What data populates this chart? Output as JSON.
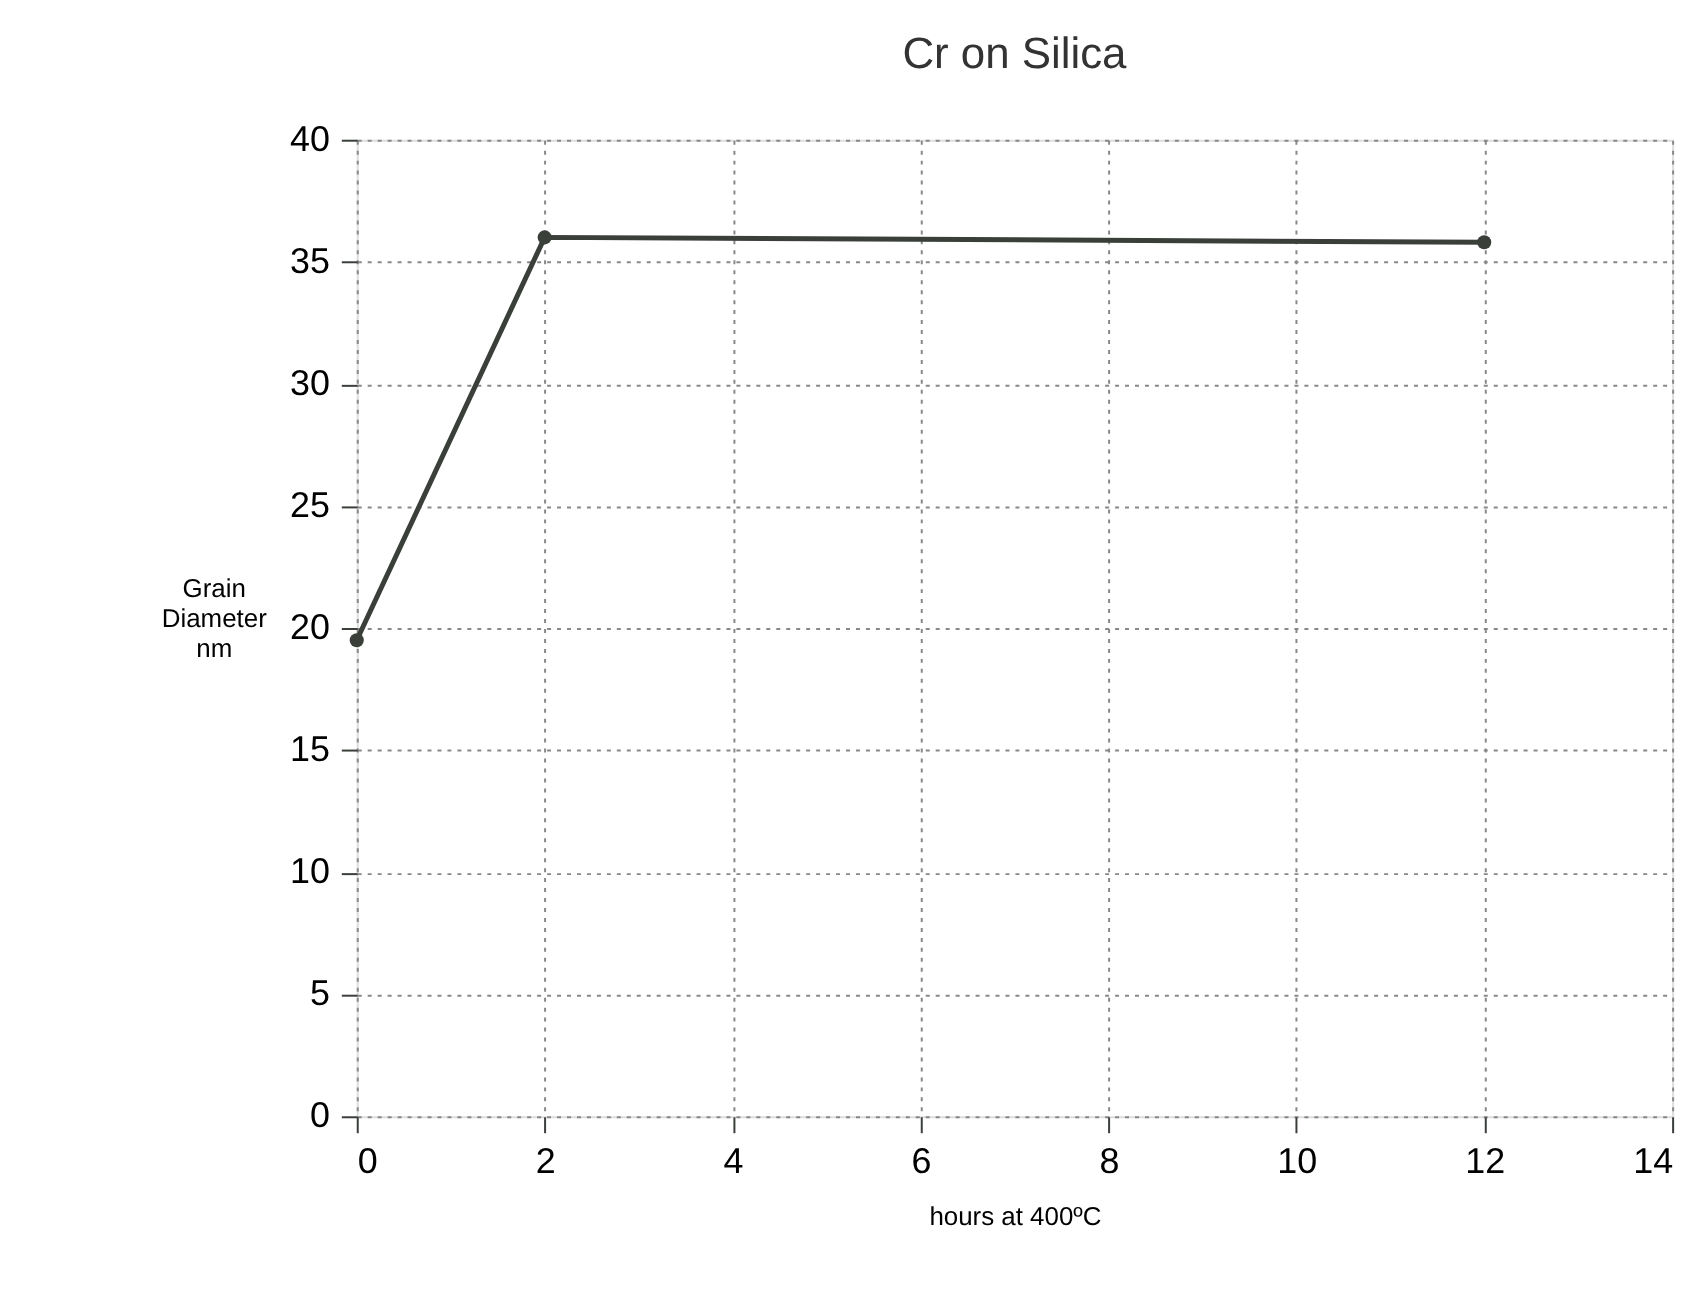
{
  "chart_data": {
    "type": "line",
    "title": "Cr on Silica",
    "xlabel": "hours at 400ºC",
    "ylabel": "Grain\nDiameter\nnm",
    "x": [
      0,
      2,
      12
    ],
    "series": [
      {
        "color": "#3a3f3a",
        "values": [
          19.5,
          36,
          35.8
        ]
      }
    ],
    "xlim": [
      0,
      14
    ],
    "xticks": [
      0,
      2,
      4,
      6,
      8,
      10,
      12,
      14
    ],
    "ylim": [
      0,
      40
    ],
    "yticks": [
      0,
      5,
      10,
      15,
      20,
      25,
      30,
      35,
      40
    ],
    "grid": true,
    "marker": "circle",
    "line_style": "solid"
  }
}
